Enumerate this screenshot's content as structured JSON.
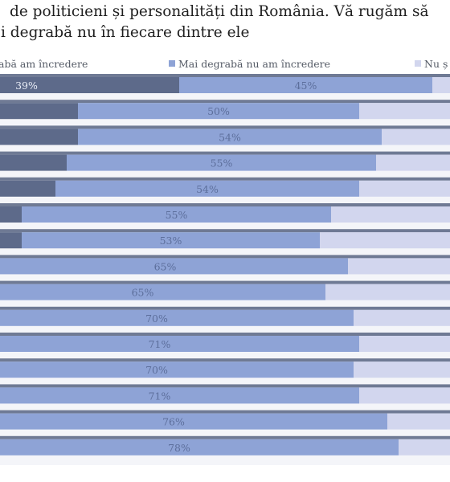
{
  "header": {
    "title_line1": "de politicieni și personalități din România. Vă rugăm să",
    "title_line2": "i degrabă nu în fiecare dintre ele"
  },
  "legend": [
    {
      "label": "abă am încredere",
      "color": "#5d6a8a"
    },
    {
      "label": "Mai degrabă nu am încredere",
      "color": "#8ea3d6"
    },
    {
      "label": "Nu ș",
      "color": "#d2d6ee"
    }
  ],
  "chart_data": {
    "type": "bar",
    "orientation": "horizontal",
    "stacked": true,
    "x_range": [
      0,
      100
    ],
    "series": [
      {
        "name": "abă am încredere",
        "color": "#5d6a8a",
        "values": [
          39,
          21,
          21,
          19,
          17,
          11,
          11,
          4,
          0,
          0,
          0,
          0,
          0,
          0,
          0
        ]
      },
      {
        "name": "Mai degrabă nu am încredere",
        "color": "#8ea3d6",
        "values": [
          45,
          50,
          54,
          55,
          54,
          55,
          53,
          65,
          65,
          70,
          71,
          70,
          71,
          76,
          78
        ]
      }
    ],
    "labels": {
      "abă am încredere": [
        "39%",
        "",
        "",
        "",
        "",
        "",
        "",
        "",
        "",
        "",
        "",
        "",
        "",
        "",
        ""
      ],
      "Mai degrabă nu am încredere": [
        "45%",
        "50%",
        "54%",
        "55%",
        "54%",
        "55%",
        "53%",
        "65%",
        "65%",
        "70%",
        "71%",
        "70%",
        "71%",
        "76%",
        "78%"
      ]
    }
  }
}
